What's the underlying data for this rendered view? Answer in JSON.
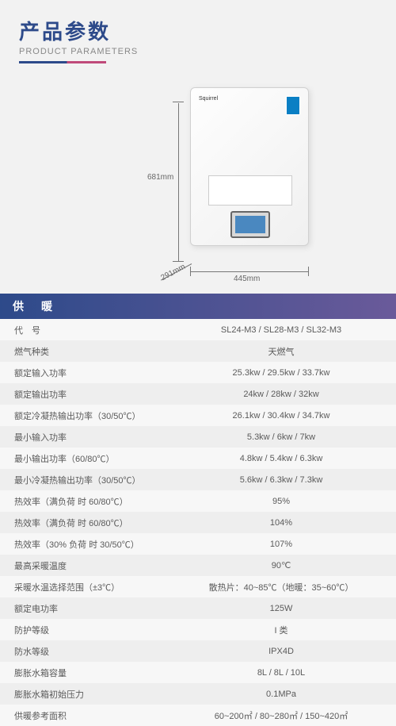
{
  "header": {
    "title_cn": "产品参数",
    "title_en": "PRODUCT PARAMETERS"
  },
  "product": {
    "brand": "Squirrel",
    "dim_height": "681mm",
    "dim_width": "445mm",
    "dim_depth": "291mm"
  },
  "section": {
    "heating_title": "供　暖"
  },
  "specs": [
    {
      "k": "代　号",
      "v": "SL24-M3  /  SL28-M3  /  SL32-M3"
    },
    {
      "k": "燃气种类",
      "v": "天燃气"
    },
    {
      "k": "额定输入功率",
      "v": "25.3kw  /  29.5kw  /  33.7kw"
    },
    {
      "k": "额定输出功率",
      "v": "24kw  /  28kw  /  32kw"
    },
    {
      "k": "额定冷凝热输出功率（30/50℃）",
      "v": "26.1kw  /  30.4kw  /  34.7kw"
    },
    {
      "k": "最小输入功率",
      "v": "5.3kw  /  6kw  /  7kw"
    },
    {
      "k": "最小输出功率（60/80℃）",
      "v": "4.8kw  /  5.4kw  /  6.3kw"
    },
    {
      "k": "最小冷凝热输出功率（30/50℃）",
      "v": "5.6kw  /  6.3kw  /  7.3kw"
    },
    {
      "k": "热效率（满负荷 时 60/80℃）",
      "v": "95%"
    },
    {
      "k": "热效率（满负荷 时 60/80℃）",
      "v": "104%"
    },
    {
      "k": "热效率（30% 负荷 时 30/50℃）",
      "v": "107%"
    },
    {
      "k": "最高采暖温度",
      "v": "90℃"
    },
    {
      "k": "采暖水温选择范围（±3℃）",
      "v": "散热片：40~85℃（地暖：35~60℃）"
    },
    {
      "k": "额定电功率",
      "v": "125W"
    },
    {
      "k": "防护等级",
      "v": "I 类"
    },
    {
      "k": "防水等级",
      "v": "IPX4D"
    },
    {
      "k": "膨胀水箱容量",
      "v": "8L  /  8L  /  10L"
    },
    {
      "k": "膨胀水箱初始压力",
      "v": "0.1MPa"
    },
    {
      "k": "供暖参考面积",
      "v": "60~200㎡  /  80~280㎡  /  150~420㎡"
    }
  ],
  "colors": {
    "primary": "#2d4a8a",
    "accent": "#c04a7a",
    "row_odd": "#f7f7f7",
    "row_even": "#eeeeee",
    "text": "#5a5a5a",
    "background": "#f2f2f2"
  }
}
